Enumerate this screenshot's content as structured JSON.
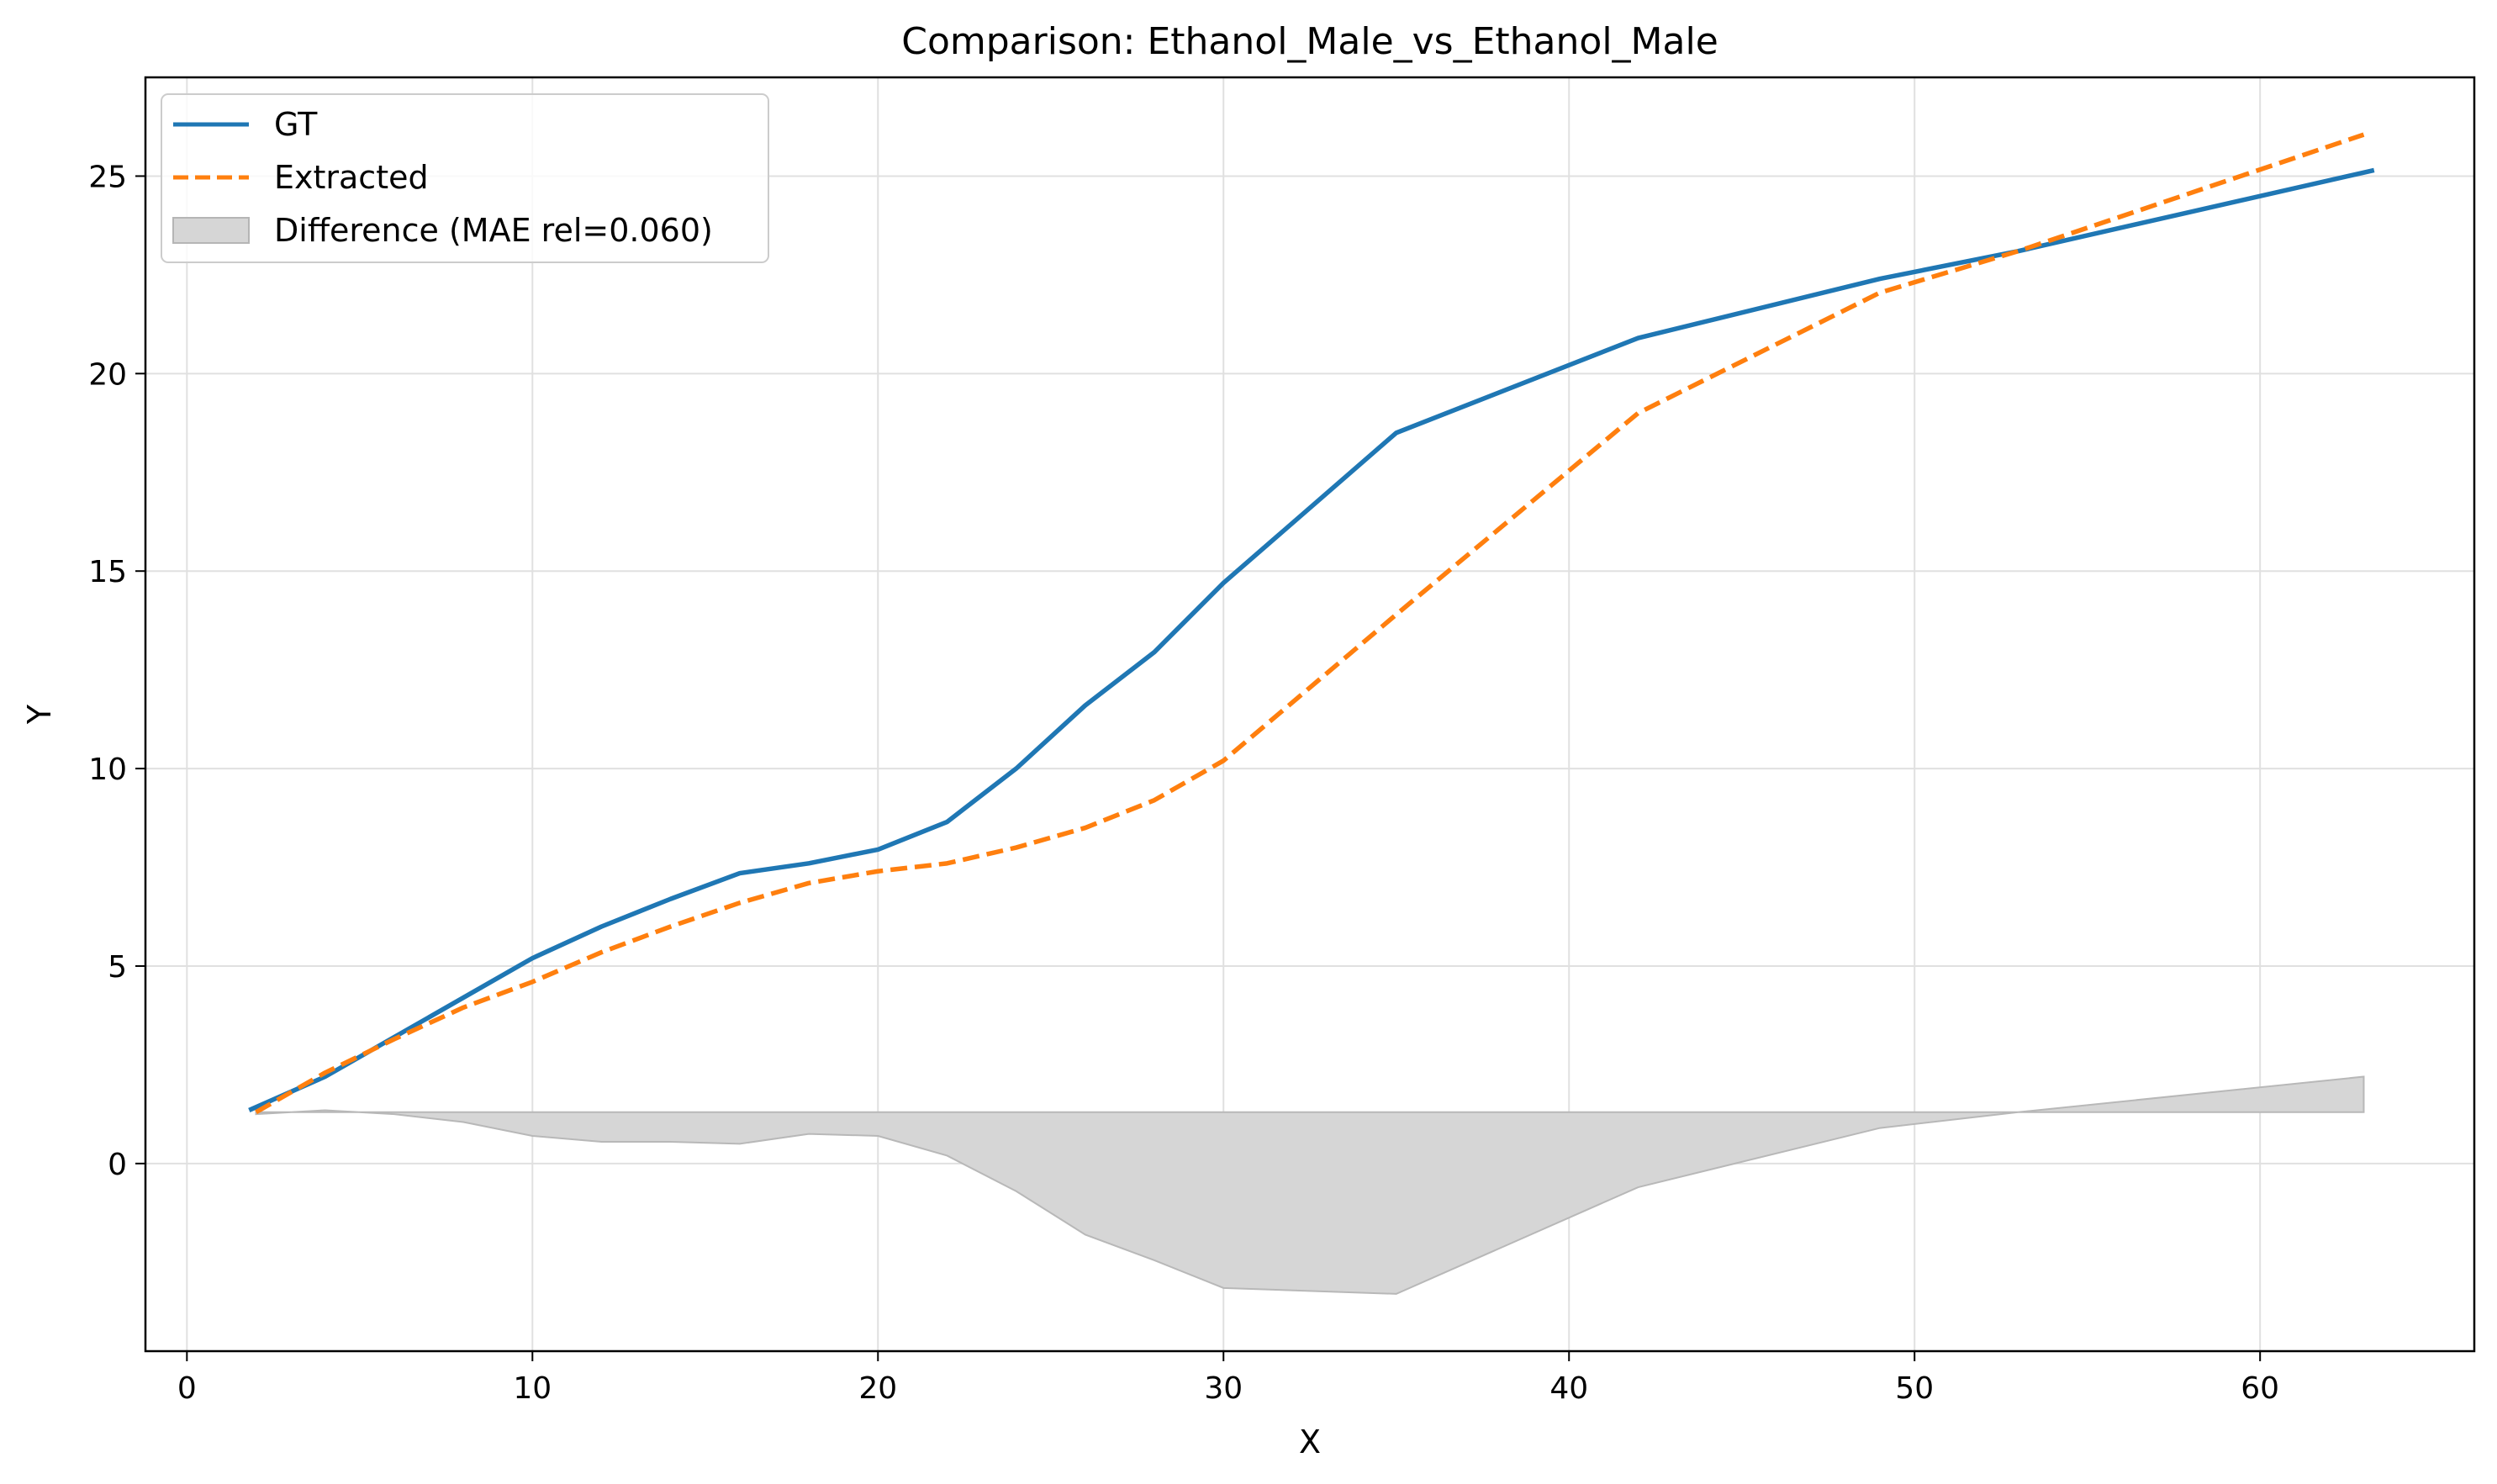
{
  "chart_data": {
    "type": "line",
    "title": "Comparison: Ethanol_Male_vs_Ethanol_Male",
    "xlabel": "X",
    "ylabel": "Y",
    "xlim": [
      -1.2,
      66.2
    ],
    "ylim": [
      -4.75,
      27.5
    ],
    "xticks": [
      0,
      10,
      20,
      30,
      40,
      50,
      60
    ],
    "yticks": [
      0,
      5,
      10,
      15,
      20,
      25
    ],
    "grid": true,
    "legend_position": "top-left",
    "series": [
      {
        "name": "GT",
        "style": "solid",
        "color": "#1f77b4",
        "x": [
          1.8,
          4,
          6,
          8,
          10,
          12,
          14,
          16,
          18,
          20,
          22,
          24,
          26,
          28,
          30,
          35,
          42,
          49,
          53,
          63.3
        ],
        "y": [
          1.35,
          2.2,
          3.2,
          4.2,
          5.2,
          6.0,
          6.7,
          7.35,
          7.6,
          7.95,
          8.65,
          10.0,
          11.6,
          12.95,
          14.7,
          18.5,
          20.9,
          22.4,
          23.1,
          25.15
        ]
      },
      {
        "name": "Extracted",
        "style": "dashed",
        "color": "#ff7f0e",
        "x": [
          2,
          4,
          6,
          8,
          10,
          12,
          14,
          16,
          18,
          20,
          22,
          24,
          26,
          28,
          30,
          35,
          42,
          49,
          53,
          63
        ],
        "y": [
          1.3,
          2.3,
          3.15,
          3.95,
          4.6,
          5.35,
          6.0,
          6.6,
          7.1,
          7.4,
          7.6,
          8.0,
          8.5,
          9.2,
          10.2,
          13.9,
          19.0,
          22.05,
          23.1,
          26.05
        ]
      }
    ],
    "difference": {
      "name": "Difference (MAE rel=0.060)",
      "color": "#d6d6d6",
      "baseline": 1.3,
      "x": [
        2,
        4,
        6,
        8,
        10,
        12,
        14,
        16,
        18,
        20,
        22,
        24,
        26,
        28,
        30,
        35,
        42,
        49,
        53,
        63
      ],
      "y": [
        1.25,
        1.35,
        1.25,
        1.05,
        0.7,
        0.55,
        0.55,
        0.5,
        0.75,
        0.7,
        0.2,
        -0.7,
        -1.8,
        -2.45,
        -3.15,
        -3.3,
        -0.6,
        0.9,
        1.3,
        2.2
      ]
    }
  }
}
